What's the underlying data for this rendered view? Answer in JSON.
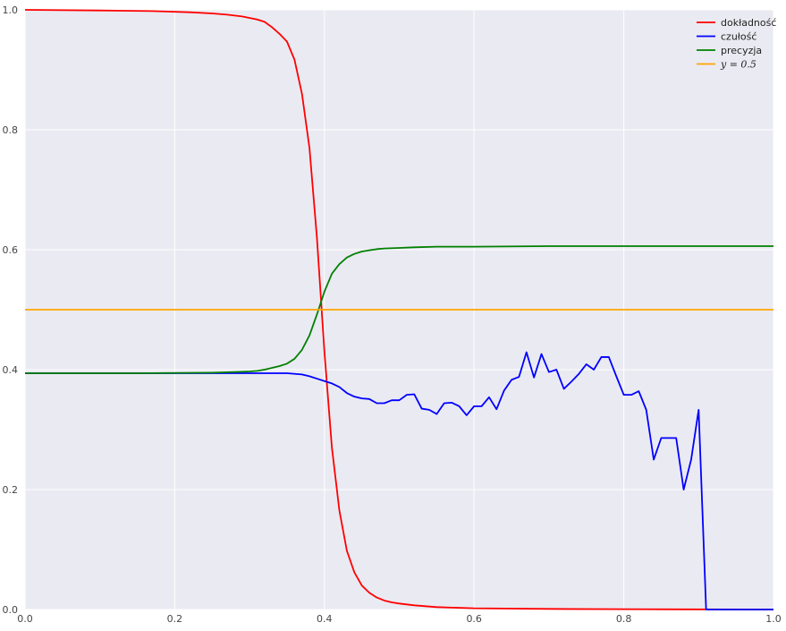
{
  "chart_data": {
    "type": "line",
    "title": "",
    "xlabel": "",
    "ylabel": "",
    "xlim": [
      0,
      1
    ],
    "ylim": [
      0,
      1
    ],
    "xticks": [
      0,
      0.2,
      0.4,
      0.6,
      0.8,
      1
    ],
    "yticks": [
      0,
      0.2,
      0.4,
      0.6,
      0.8,
      1
    ],
    "xtick_labels": [
      "0.0",
      "0.2",
      "0.4",
      "0.6",
      "0.8",
      "1.0"
    ],
    "ytick_labels": [
      "0.0",
      "0.2",
      "0.4",
      "0.6",
      "0.8",
      "1.0"
    ],
    "grid": true,
    "legend_position": "top-right",
    "series": [
      {
        "name": "dokładność",
        "color": "#ff0000",
        "x": [
          0,
          0.1,
          0.17,
          0.22,
          0.25,
          0.27,
          0.29,
          0.31,
          0.32,
          0.33,
          0.34,
          0.35,
          0.36,
          0.37,
          0.38,
          0.39,
          0.4,
          0.41,
          0.42,
          0.43,
          0.44,
          0.45,
          0.46,
          0.47,
          0.48,
          0.49,
          0.5,
          0.52,
          0.55,
          0.6,
          0.7,
          0.8,
          1.0
        ],
        "y": [
          1.0,
          0.999,
          0.998,
          0.996,
          0.994,
          0.992,
          0.989,
          0.984,
          0.98,
          0.971,
          0.96,
          0.947,
          0.917,
          0.86,
          0.77,
          0.62,
          0.43,
          0.27,
          0.165,
          0.098,
          0.062,
          0.04,
          0.028,
          0.02,
          0.015,
          0.012,
          0.01,
          0.007,
          0.004,
          0.002,
          0.001,
          0.0005,
          0.0
        ]
      },
      {
        "name": "czułość",
        "color": "#0000ff",
        "x": [
          0,
          0.2,
          0.3,
          0.33,
          0.35,
          0.37,
          0.38,
          0.39,
          0.4,
          0.41,
          0.42,
          0.43,
          0.44,
          0.45,
          0.46,
          0.47,
          0.48,
          0.49,
          0.5,
          0.51,
          0.52,
          0.53,
          0.54,
          0.55,
          0.56,
          0.57,
          0.58,
          0.59,
          0.6,
          0.61,
          0.62,
          0.63,
          0.64,
          0.65,
          0.66,
          0.67,
          0.68,
          0.69,
          0.7,
          0.71,
          0.72,
          0.73,
          0.74,
          0.75,
          0.76,
          0.77,
          0.78,
          0.79,
          0.8,
          0.81,
          0.82,
          0.83,
          0.84,
          0.85,
          0.86,
          0.87,
          0.88,
          0.89,
          0.9,
          0.91,
          1.0
        ],
        "y": [
          0.394,
          0.394,
          0.394,
          0.394,
          0.394,
          0.392,
          0.389,
          0.385,
          0.381,
          0.377,
          0.371,
          0.361,
          0.355,
          0.352,
          0.351,
          0.344,
          0.344,
          0.349,
          0.349,
          0.358,
          0.359,
          0.335,
          0.333,
          0.326,
          0.344,
          0.345,
          0.339,
          0.324,
          0.339,
          0.339,
          0.354,
          0.334,
          0.365,
          0.383,
          0.388,
          0.429,
          0.387,
          0.426,
          0.396,
          0.4,
          0.368,
          0.38,
          0.393,
          0.409,
          0.4,
          0.421,
          0.421,
          0.389,
          0.358,
          0.358,
          0.364,
          0.333,
          0.25,
          0.286,
          0.286,
          0.286,
          0.2,
          0.25,
          0.333,
          0.0,
          0.0
        ]
      },
      {
        "name": "precyzja",
        "color": "#008000",
        "x": [
          0,
          0.15,
          0.25,
          0.28,
          0.3,
          0.31,
          0.32,
          0.33,
          0.34,
          0.35,
          0.36,
          0.37,
          0.38,
          0.39,
          0.4,
          0.41,
          0.42,
          0.43,
          0.44,
          0.45,
          0.46,
          0.47,
          0.48,
          0.5,
          0.52,
          0.55,
          0.6,
          0.7,
          1.0
        ],
        "y": [
          0.394,
          0.394,
          0.395,
          0.396,
          0.397,
          0.398,
          0.4,
          0.403,
          0.406,
          0.41,
          0.418,
          0.433,
          0.457,
          0.492,
          0.53,
          0.56,
          0.576,
          0.587,
          0.593,
          0.597,
          0.599,
          0.601,
          0.602,
          0.603,
          0.604,
          0.605,
          0.605,
          0.606,
          0.606
        ]
      },
      {
        "name": "y = 0.5",
        "color": "#ffa500",
        "x": [
          0,
          1
        ],
        "y": [
          0.5,
          0.5
        ]
      }
    ]
  }
}
